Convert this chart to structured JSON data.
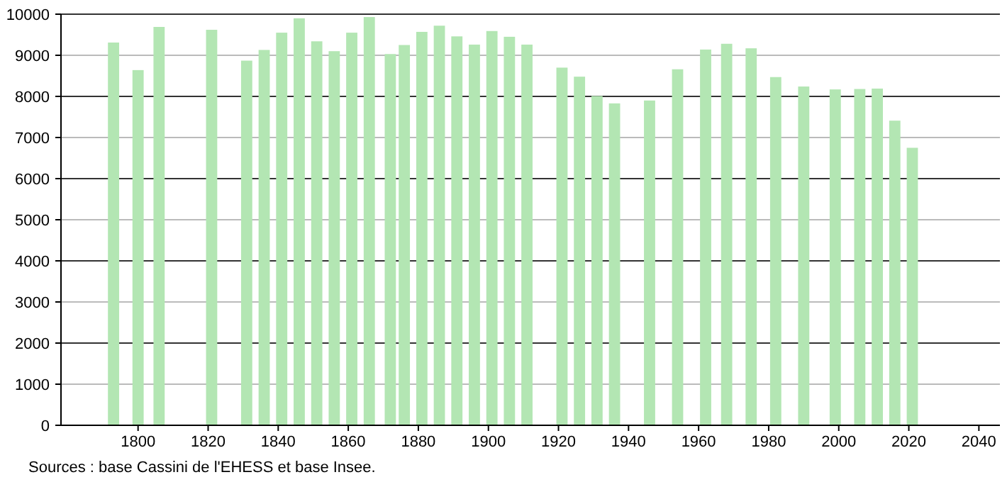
{
  "chart_data": {
    "type": "bar",
    "x": [
      1793,
      1800,
      1806,
      1821,
      1831,
      1836,
      1841,
      1846,
      1851,
      1856,
      1861,
      1866,
      1872,
      1876,
      1881,
      1886,
      1891,
      1896,
      1901,
      1906,
      1911,
      1921,
      1926,
      1931,
      1936,
      1946,
      1954,
      1962,
      1968,
      1975,
      1982,
      1990,
      1999,
      2006,
      2011,
      2016,
      2021
    ],
    "values": [
      9310,
      8640,
      9690,
      9620,
      8870,
      9130,
      9550,
      9900,
      9340,
      9100,
      9550,
      9930,
      9030,
      9250,
      9570,
      9720,
      9460,
      9260,
      9590,
      9450,
      9260,
      8700,
      8480,
      8010,
      7830,
      7900,
      8660,
      9140,
      9280,
      9170,
      8470,
      8240,
      8170,
      8180,
      8190,
      7410,
      6750
    ],
    "color": "#b3e6b3",
    "xlim": [
      1778,
      2046
    ],
    "xticks": [
      1800,
      1820,
      1840,
      1860,
      1880,
      1900,
      1920,
      1940,
      1960,
      1980,
      2000,
      2020,
      2040
    ],
    "ylim": [
      0,
      10000
    ],
    "yticks": [
      0,
      1000,
      2000,
      3000,
      4000,
      5000,
      6000,
      7000,
      8000,
      9000,
      10000
    ],
    "grid": "y",
    "annotations": [
      "Sources : base Cassini de l'EHESS et base Insee."
    ]
  }
}
